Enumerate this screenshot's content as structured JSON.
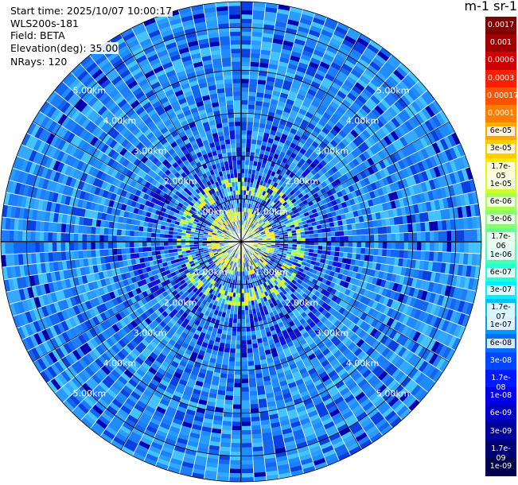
{
  "header": {
    "start_time": "Start time: 2025/10/07 10:00:17",
    "instrument": "WLS200s-181",
    "field": "Field: BETA",
    "elevation": "Elevation(deg): 35.00",
    "nrays": "NRays: 120"
  },
  "colorbar": {
    "title": "m-1 sr-1",
    "ticks": [
      "0.0017",
      "0.001",
      "0.0006",
      "0.0003",
      "0.00017",
      "0.0001",
      "6e-05",
      "3e-05",
      "1.7e-05",
      "1e-05",
      "6e-06",
      "3e-06",
      "1.7e-06",
      "1e-06",
      "6e-07",
      "3e-07",
      "1.7e-07",
      "1e-07",
      "6e-08",
      "3e-08",
      "1.7e-08",
      "1e-08",
      "6e-09",
      "3e-09",
      "1.7e-09",
      "1e-09"
    ],
    "colors": [
      "#7f0000",
      "#a00000",
      "#cc0000",
      "#ff1e00",
      "#ff5200",
      "#ff7d00",
      "#ffa800",
      "#ffcc00",
      "#f4f000",
      "#d0ff27",
      "#a7ff50",
      "#86ff71",
      "#66ff91",
      "#45ffb2",
      "#25ffd2",
      "#00f0ff",
      "#00c0ff",
      "#0099ff",
      "#0070ff",
      "#0048ff",
      "#001aff",
      "#0000e6",
      "#0000c0",
      "#00009a",
      "#000074",
      "#00004c"
    ]
  },
  "rings": {
    "labels": [
      "1.00km",
      "2.00km",
      "3.00km",
      "4.00km",
      "5.00km"
    ],
    "ranges_km": [
      1,
      2,
      3,
      4,
      5
    ],
    "max_range_km": 5.6
  }
}
